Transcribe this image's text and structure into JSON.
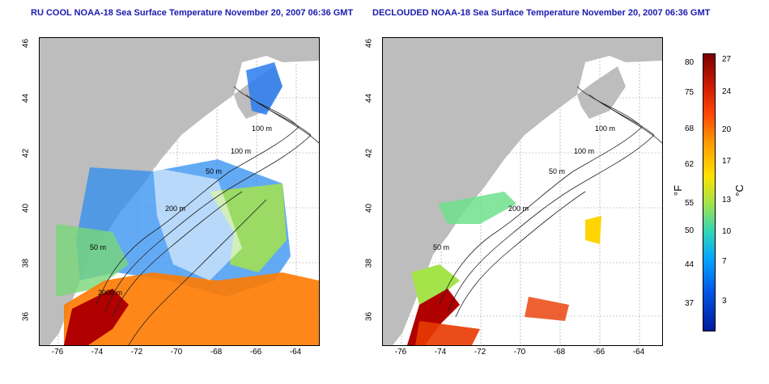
{
  "left_panel": {
    "title": "RU COOL NOAA-18 Sea Surface Temperature November 20, 2007 06:36 GMT",
    "labels": [
      "100 m",
      "100 m",
      "50 m",
      "200 m",
      "50 m",
      "2000 m"
    ]
  },
  "right_panel": {
    "title": "DECLOUDED NOAA-18 Sea Surface Temperature November 20, 2007 06:36 GMT",
    "labels": [
      "100 m",
      "100 m",
      "50 m",
      "200 m",
      "50 m"
    ]
  },
  "axes": {
    "x_ticks": [
      "-76",
      "-74",
      "-72",
      "-70",
      "-68",
      "-66",
      "-64"
    ],
    "y_ticks": [
      "36",
      "38",
      "40",
      "42",
      "44",
      "46"
    ]
  },
  "colorbar": {
    "fahrenheit_ticks": [
      "80",
      "75",
      "68",
      "62",
      "55",
      "50",
      "44",
      "37"
    ],
    "celsius_ticks": [
      "27",
      "24",
      "20",
      "17",
      "13",
      "10",
      "7",
      "3"
    ],
    "unit_f": "°F",
    "unit_c": "°C"
  },
  "colors": {
    "land": "#bdbdbd",
    "title": "#1a1ab0",
    "warm": "#d11c00",
    "cool": "#0055e6"
  }
}
